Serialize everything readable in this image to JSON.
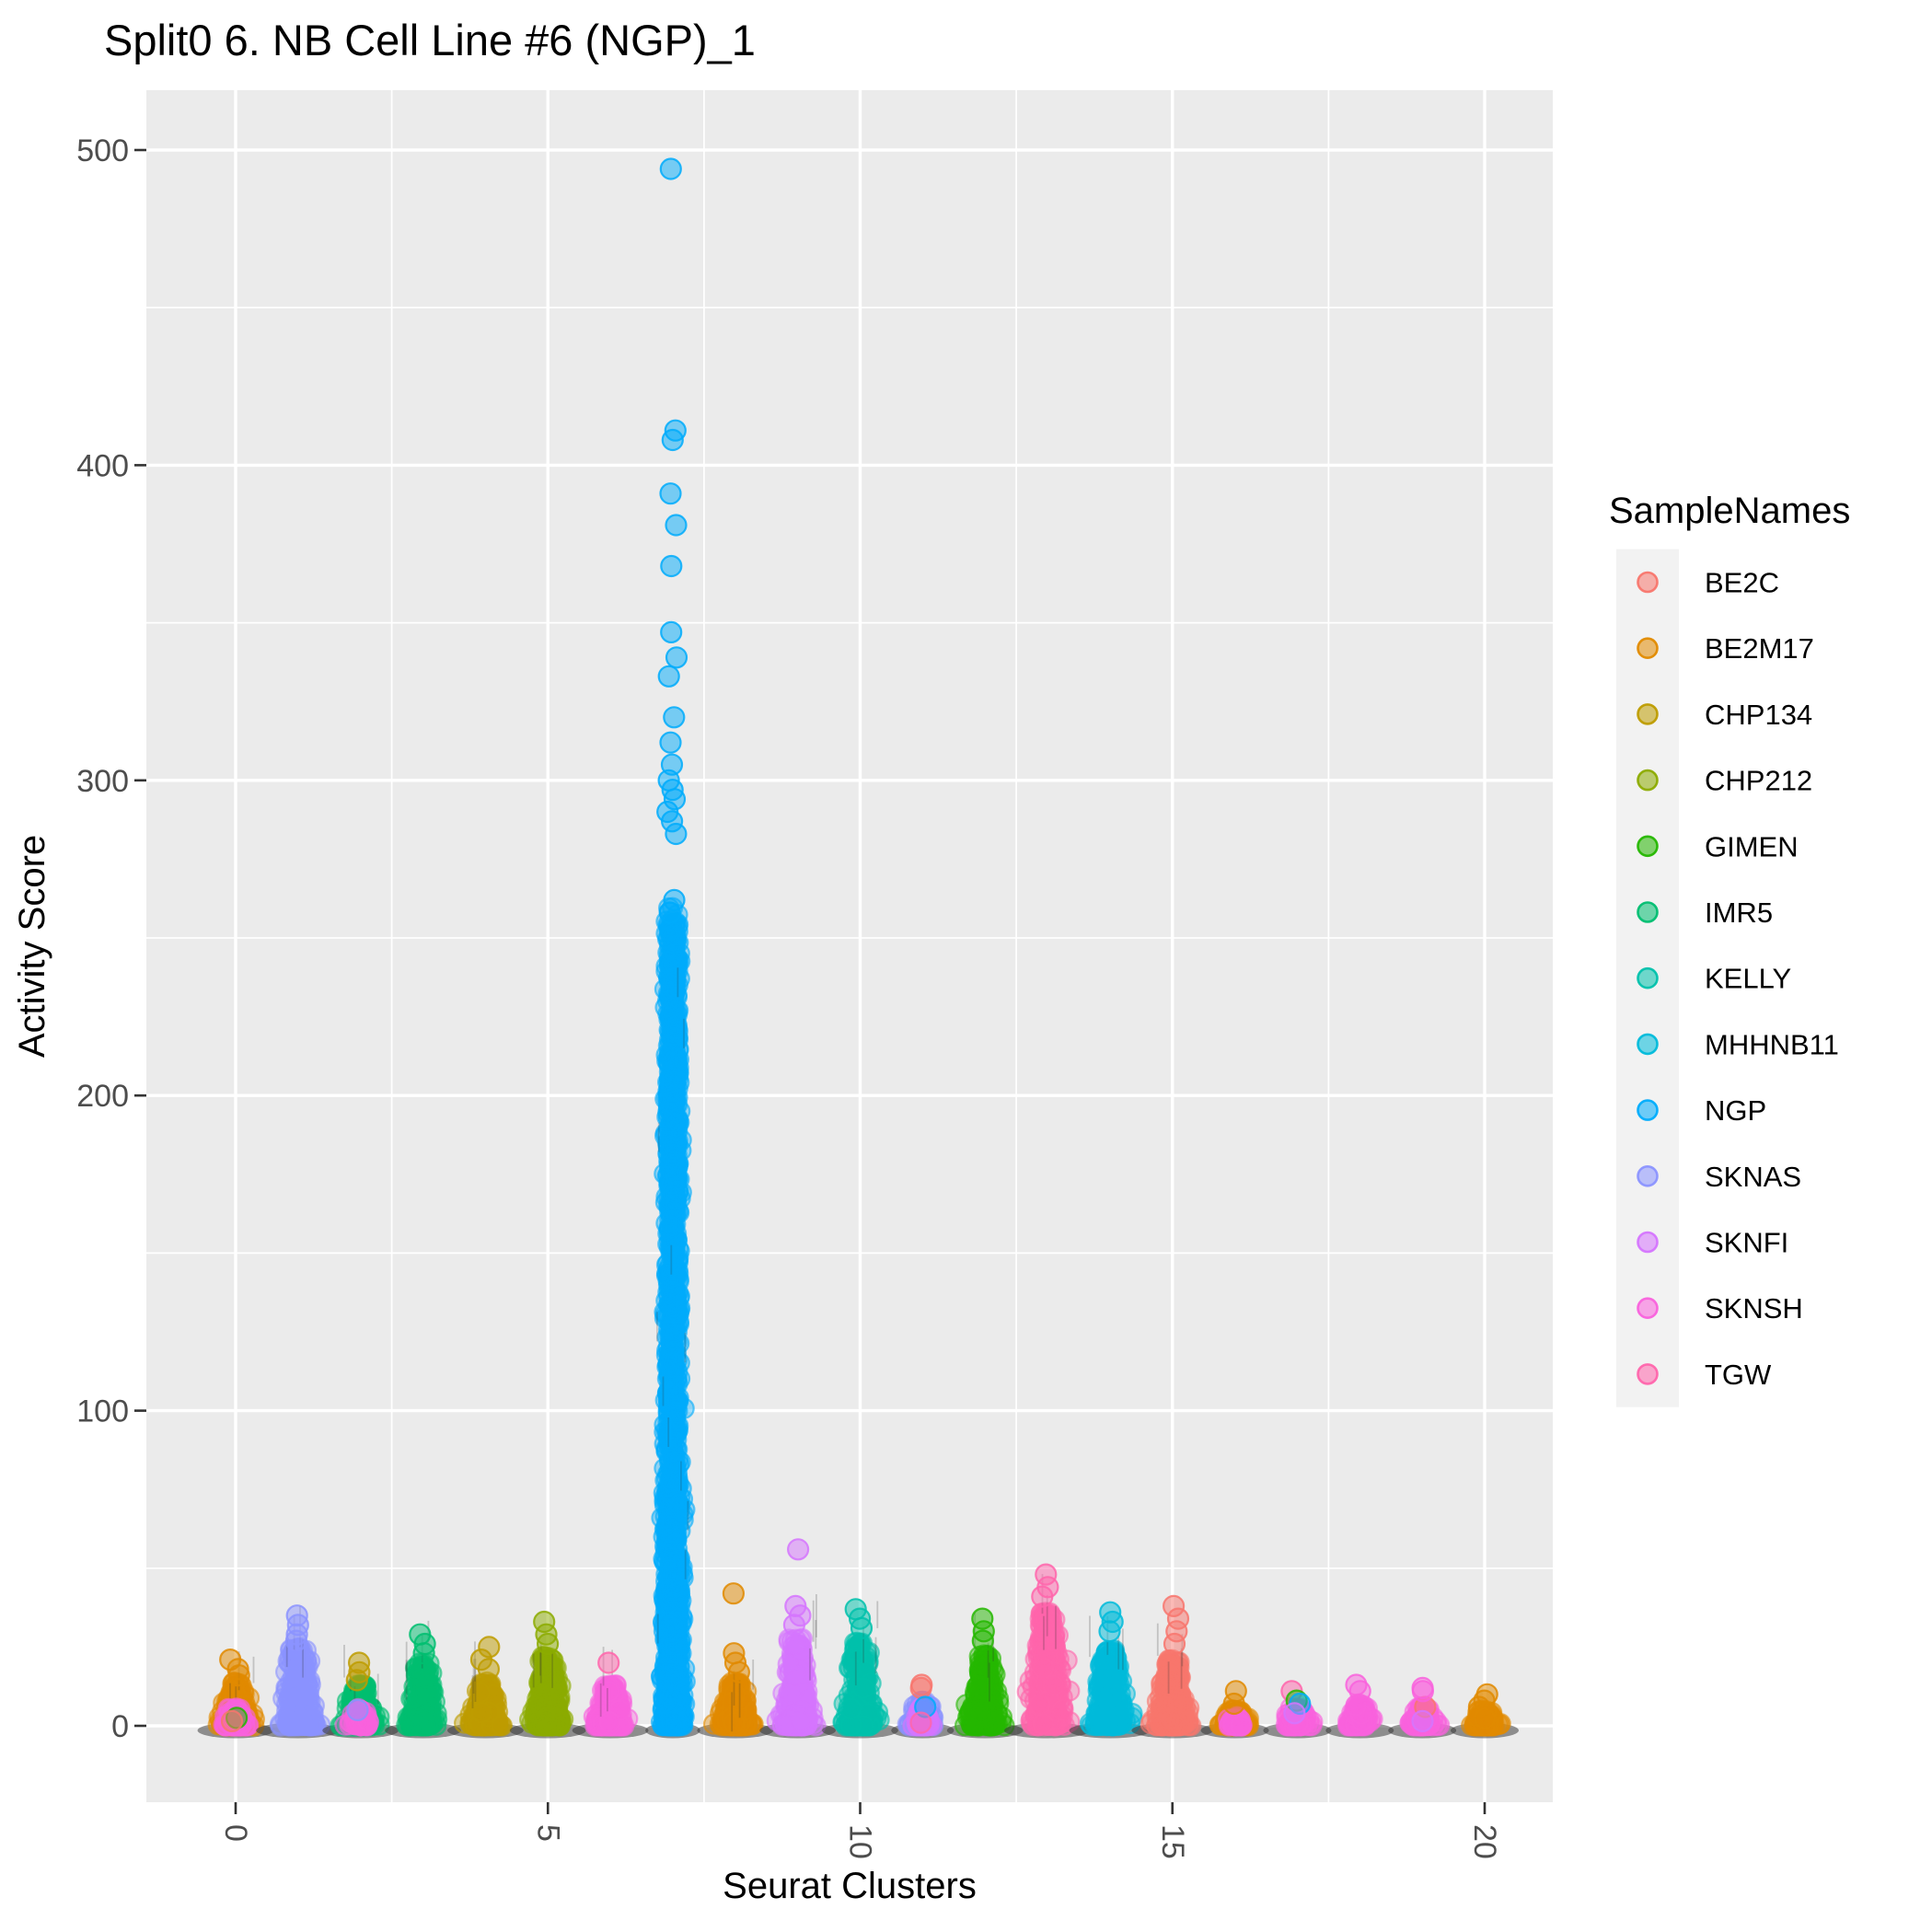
{
  "title": "Split0 6. NB Cell Line #6 (NGP)_1",
  "axes": {
    "x": {
      "label": "Seurat Clusters",
      "ticks": [
        0,
        5,
        10,
        15,
        20
      ],
      "minor_ticks": [
        2.5,
        7.5,
        12.5,
        17.5
      ]
    },
    "y": {
      "label": "Activity Score",
      "ticks": [
        0,
        100,
        200,
        300,
        400,
        500
      ],
      "minor_ticks": [
        50,
        150,
        250,
        350,
        450
      ]
    }
  },
  "legend": {
    "title": "SampleNames",
    "items": [
      {
        "name": "BE2C",
        "color": "#F8766D"
      },
      {
        "name": "BE2M17",
        "color": "#E18A00"
      },
      {
        "name": "CHP134",
        "color": "#BE9C00"
      },
      {
        "name": "CHP212",
        "color": "#8CAB00"
      },
      {
        "name": "GIMEN",
        "color": "#24B700"
      },
      {
        "name": "IMR5",
        "color": "#00BE70"
      },
      {
        "name": "KELLY",
        "color": "#00C1AB"
      },
      {
        "name": "MHHNB11",
        "color": "#00BBDA"
      },
      {
        "name": "NGP",
        "color": "#00ACFC"
      },
      {
        "name": "SKNAS",
        "color": "#8B93FF"
      },
      {
        "name": "SKNFI",
        "color": "#D575FE"
      },
      {
        "name": "SKNSH",
        "color": "#F962DD"
      },
      {
        "name": "TGW",
        "color": "#FF65AC"
      }
    ]
  },
  "style_colors": {
    "panel_bg": "#EBEBEB",
    "grid": "#FFFFFF",
    "tick_mark": "#333333",
    "tick_text": "#4D4D4D",
    "legend_key_bg": "#F2F2F2",
    "base_shadow": "#303030"
  },
  "chart_data": {
    "type": "scatter",
    "subtype": "jittered-strip-plot",
    "title": "Split0 6. NB Cell Line #6 (NGP)_1",
    "xlabel": "Seurat Clusters",
    "ylabel": "Activity Score",
    "xlim": [
      -1.5,
      21.2
    ],
    "ylim": [
      -25,
      520
    ],
    "grid": "on",
    "legend_position": "right",
    "note": "Each cluster column is a dense jitter of single cells colored by dominant sample; mass_max is the approximate top of the dense mass, dots are individually visible outlier values.",
    "clusters": [
      {
        "cluster": 0,
        "sample": "BE2M17",
        "mass_max": 14,
        "dots": [
          21,
          18,
          16
        ],
        "extras": [
          {
            "sample": "SKNSH",
            "mass_max": 6,
            "n": 70,
            "halfwidth": 19
          },
          {
            "sample": "GIMEN",
            "dots": [
              2.5
            ]
          },
          {
            "sample": "BE2C",
            "dots": [
              1.5
            ]
          }
        ]
      },
      {
        "cluster": 1,
        "sample": "SKNAS",
        "mass_max": 25,
        "n": 300,
        "halfwidth": 26,
        "dots": [
          35,
          32,
          29,
          27
        ]
      },
      {
        "cluster": 2,
        "sample": "IMR5",
        "mass_max": 13,
        "dots": [],
        "extras": [
          {
            "sample": "CHP134",
            "dots": [
              20,
              17,
              14.5
            ]
          },
          {
            "sample": "SKNSH",
            "mass_max": 5.5,
            "n": 60,
            "halfwidth": 17
          },
          {
            "sample": "SKNAS",
            "dots": [
              5
            ]
          }
        ]
      },
      {
        "cluster": 3,
        "sample": "IMR5",
        "mass_max": 20,
        "dots": [
          29,
          26,
          23
        ]
      },
      {
        "cluster": 4,
        "sample": "CHP134",
        "mass_max": 14,
        "dots": [
          25,
          21,
          18
        ]
      },
      {
        "cluster": 5,
        "sample": "CHP212",
        "mass_max": 22,
        "dots": [
          33,
          29,
          26
        ]
      },
      {
        "cluster": 6,
        "sample": "SKNSH",
        "mass_max": 13,
        "dots": [],
        "extras": [
          {
            "sample": "TGW",
            "dots": [
              20
            ]
          }
        ]
      },
      {
        "cluster": 7,
        "sample": "NGP",
        "ngp": true,
        "mass_max": 255,
        "halfwidth": 15,
        "dots": [
          494,
          411,
          408,
          391,
          381,
          368,
          347,
          339,
          333,
          320,
          312,
          305,
          300,
          297,
          294,
          290,
          287,
          283,
          262,
          258
        ]
      },
      {
        "cluster": 8,
        "sample": "BE2M17",
        "mass_max": 14,
        "dots": [
          42,
          23,
          20,
          17
        ]
      },
      {
        "cluster": 9,
        "sample": "SKNFI",
        "mass_max": 28,
        "dots": [
          56,
          38,
          35,
          32
        ]
      },
      {
        "cluster": 10,
        "sample": "KELLY",
        "mass_max": 27,
        "dots": [
          37,
          34,
          31
        ]
      },
      {
        "cluster": 11,
        "sample": "SKNAS",
        "mass_max": 8,
        "halfwidth": 18,
        "dots": [],
        "extras": [
          {
            "sample": "SKNFI",
            "mass_max": 6,
            "n": 60,
            "halfwidth": 15
          },
          {
            "sample": "BE2C",
            "dots": [
              13,
              12
            ]
          },
          {
            "sample": "NGP",
            "dots": [
              6
            ]
          },
          {
            "sample": "TGW",
            "dots": [
              1
            ]
          }
        ]
      },
      {
        "cluster": 12,
        "sample": "GIMEN",
        "mass_max": 23,
        "dots": [
          34,
          30,
          27
        ]
      },
      {
        "cluster": 13,
        "sample": "TGW",
        "mass_max": 36,
        "n": 360,
        "halfwidth": 27,
        "pow": 1.5,
        "dots": [
          48,
          44,
          41
        ]
      },
      {
        "cluster": 14,
        "sample": "MHHNB11",
        "mass_max": 24,
        "n": 300,
        "halfwidth": 25,
        "pow": 1.7,
        "dots": [
          36,
          33,
          30
        ]
      },
      {
        "cluster": 15,
        "sample": "BE2C",
        "mass_max": 21,
        "n": 300,
        "halfwidth": 25,
        "dots": [
          38,
          34,
          30,
          26
        ]
      },
      {
        "cluster": 16,
        "sample": "BE2M17",
        "mass_max": 5,
        "dots": [
          11,
          7
        ],
        "extras": [
          {
            "sample": "SKNSH",
            "mass_max": 3,
            "n": 40,
            "halfwidth": 16
          }
        ]
      },
      {
        "cluster": 17,
        "sample": "SKNSH",
        "mass_max": 6,
        "dots": [],
        "extras": [
          {
            "sample": "TGW",
            "dots": [
              11
            ]
          },
          {
            "sample": "GIMEN",
            "dots": [
              8
            ]
          },
          {
            "sample": "NGP",
            "dots": [
              7
            ]
          },
          {
            "sample": "SKNFI",
            "dots": [
              4
            ]
          }
        ]
      },
      {
        "cluster": 18,
        "sample": "SKNSH",
        "mass_max": 7,
        "dots": [
          13,
          11
        ]
      },
      {
        "cluster": 19,
        "sample": "SKNSH",
        "mass_max": 6,
        "dots": [
          12,
          11
        ],
        "extras": [
          {
            "sample": "BE2C",
            "dots": [
              6
            ]
          },
          {
            "sample": "SKNFI",
            "dots": [
              1.5
            ]
          }
        ]
      },
      {
        "cluster": 20,
        "sample": "BE2M17",
        "mass_max": 5,
        "dots": [
          10,
          8,
          6
        ]
      }
    ]
  }
}
